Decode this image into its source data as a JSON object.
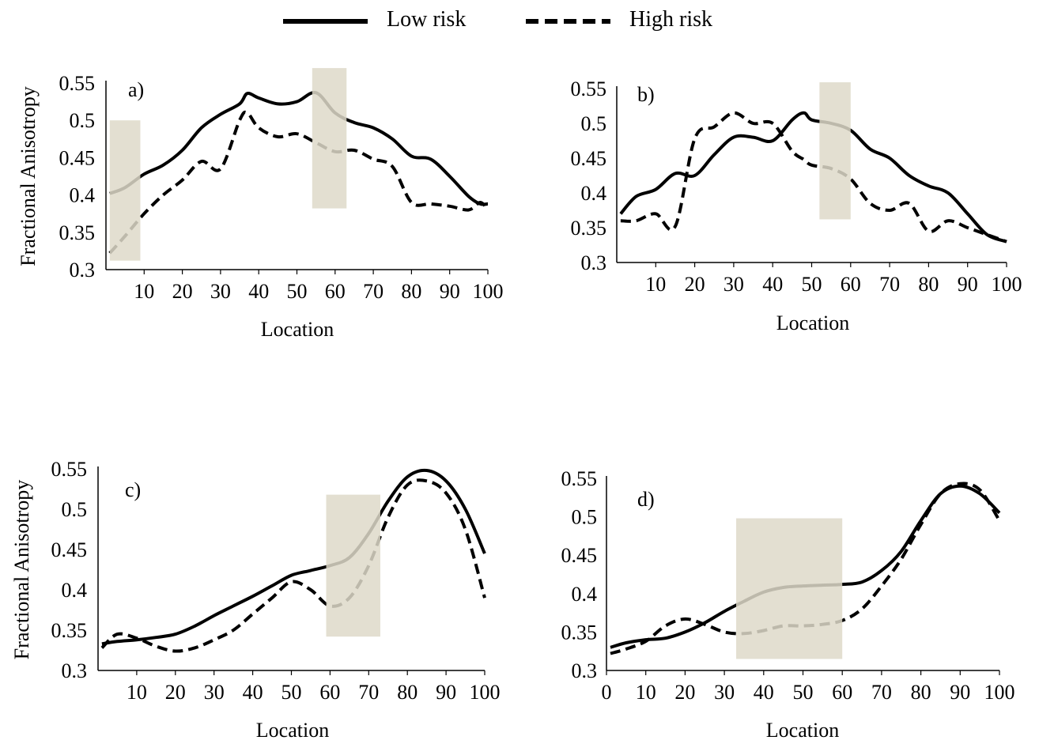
{
  "legend": {
    "position": "top-center",
    "items": [
      {
        "label": "Low risk",
        "style": "solid"
      },
      {
        "label": "High risk",
        "style": "dashed"
      }
    ]
  },
  "colors": {
    "line": "#000000",
    "highlight": "#ded9c9",
    "highlight_opacity": 0.85
  },
  "chart_data": [
    {
      "type": "line",
      "panel_label": "a)",
      "xlabel": "Location",
      "ylabel": "Fractional Anisotropy",
      "xlim": [
        0,
        100
      ],
      "ylim": [
        0.3,
        0.55
      ],
      "xticks": [
        10,
        20,
        30,
        40,
        50,
        60,
        70,
        80,
        90,
        100
      ],
      "yticks": [
        0.3,
        0.35,
        0.4,
        0.45,
        0.5,
        0.55
      ],
      "ytick_labels": [
        "0.3",
        "0.35",
        "0.4",
        "0.45",
        "0.5",
        "0.55"
      ],
      "highlights": [
        {
          "x": [
            1,
            9
          ],
          "y": [
            0.312,
            0.5
          ]
        },
        {
          "x": [
            54,
            63
          ],
          "y": [
            0.382,
            0.57
          ]
        }
      ],
      "x": [
        1,
        5,
        10,
        15,
        20,
        25,
        30,
        35,
        37,
        40,
        45,
        50,
        55,
        60,
        65,
        70,
        75,
        80,
        85,
        90,
        95,
        98,
        100
      ],
      "series": [
        {
          "name": "Low risk",
          "style": "solid",
          "values": [
            0.402,
            0.41,
            0.428,
            0.44,
            0.46,
            0.49,
            0.508,
            0.522,
            0.536,
            0.53,
            0.522,
            0.525,
            0.537,
            0.51,
            0.497,
            0.49,
            0.475,
            0.452,
            0.448,
            0.425,
            0.398,
            0.388,
            0.388
          ]
        },
        {
          "name": "High risk",
          "style": "dashed",
          "values": [
            0.322,
            0.345,
            0.375,
            0.4,
            0.42,
            0.445,
            0.435,
            0.5,
            0.51,
            0.49,
            0.478,
            0.482,
            0.47,
            0.458,
            0.46,
            0.448,
            0.438,
            0.39,
            0.388,
            0.385,
            0.38,
            0.39,
            0.38
          ]
        }
      ]
    },
    {
      "type": "line",
      "panel_label": "b)",
      "xlabel": "Location",
      "ylabel": "",
      "xlim": [
        0,
        100
      ],
      "ylim": [
        0.3,
        0.55
      ],
      "xticks": [
        10,
        20,
        30,
        40,
        50,
        60,
        70,
        80,
        90,
        100
      ],
      "yticks": [
        0.3,
        0.35,
        0.4,
        0.45,
        0.5,
        0.55
      ],
      "ytick_labels": [
        "0.3",
        "0.35",
        "0.4",
        "0.45",
        "0.5",
        "0.55"
      ],
      "highlights": [
        {
          "x": [
            52,
            60
          ],
          "y": [
            0.362,
            0.559
          ]
        }
      ],
      "x": [
        1,
        5,
        10,
        15,
        20,
        25,
        30,
        35,
        40,
        45,
        48,
        50,
        55,
        60,
        65,
        70,
        75,
        80,
        85,
        90,
        95,
        100
      ],
      "series": [
        {
          "name": "Low risk",
          "style": "solid",
          "values": [
            0.37,
            0.395,
            0.405,
            0.428,
            0.425,
            0.455,
            0.48,
            0.48,
            0.475,
            0.505,
            0.515,
            0.505,
            0.5,
            0.49,
            0.463,
            0.45,
            0.425,
            0.41,
            0.4,
            0.37,
            0.34,
            0.33
          ]
        },
        {
          "name": "High risk",
          "style": "dashed",
          "values": [
            0.36,
            0.36,
            0.37,
            0.352,
            0.478,
            0.495,
            0.515,
            0.5,
            0.5,
            0.46,
            0.448,
            0.44,
            0.435,
            0.42,
            0.385,
            0.375,
            0.385,
            0.345,
            0.36,
            0.35,
            0.34,
            0.33
          ]
        }
      ]
    },
    {
      "type": "line",
      "panel_label": "c)",
      "xlabel": "Location",
      "ylabel": "Fractional Anisotropy",
      "xlim": [
        0,
        100
      ],
      "ylim": [
        0.3,
        0.55
      ],
      "xticks": [
        10,
        20,
        30,
        40,
        50,
        60,
        70,
        80,
        90,
        100
      ],
      "yticks": [
        0.3,
        0.35,
        0.4,
        0.45,
        0.5,
        0.55
      ],
      "ytick_labels": [
        "0.3",
        "0.35",
        "0.4",
        "0.45",
        "0.5",
        "0.55"
      ],
      "highlights": [
        {
          "x": [
            59,
            73
          ],
          "y": [
            0.342,
            0.518
          ]
        }
      ],
      "x": [
        1,
        5,
        10,
        15,
        20,
        25,
        30,
        35,
        40,
        45,
        50,
        55,
        60,
        65,
        70,
        75,
        80,
        85,
        90,
        95,
        100
      ],
      "series": [
        {
          "name": "Low risk",
          "style": "solid",
          "values": [
            0.333,
            0.336,
            0.338,
            0.341,
            0.345,
            0.355,
            0.368,
            0.38,
            0.392,
            0.405,
            0.418,
            0.424,
            0.43,
            0.44,
            0.47,
            0.51,
            0.54,
            0.548,
            0.535,
            0.5,
            0.445
          ]
        },
        {
          "name": "High risk",
          "style": "dashed",
          "values": [
            0.328,
            0.345,
            0.34,
            0.33,
            0.324,
            0.328,
            0.338,
            0.35,
            0.37,
            0.39,
            0.41,
            0.4,
            0.38,
            0.39,
            0.43,
            0.49,
            0.53,
            0.535,
            0.52,
            0.475,
            0.39
          ]
        }
      ]
    },
    {
      "type": "line",
      "panel_label": "d)",
      "xlabel": "Location",
      "ylabel": "",
      "xlim": [
        0,
        100
      ],
      "ylim": [
        0.3,
        0.55
      ],
      "xticks": [
        0,
        10,
        20,
        30,
        40,
        50,
        60,
        70,
        80,
        90,
        100
      ],
      "yticks": [
        0.3,
        0.35,
        0.4,
        0.45,
        0.5,
        0.55
      ],
      "ytick_labels": [
        "0.3",
        "0.35",
        "0.4",
        "0.45",
        "0.5",
        "0.55"
      ],
      "highlights": [
        {
          "x": [
            33,
            60
          ],
          "y": [
            0.315,
            0.498
          ]
        }
      ],
      "x": [
        1,
        5,
        10,
        15,
        20,
        25,
        30,
        35,
        40,
        45,
        50,
        55,
        60,
        65,
        70,
        75,
        80,
        85,
        90,
        95,
        100
      ],
      "series": [
        {
          "name": "Low risk",
          "style": "solid",
          "values": [
            0.33,
            0.336,
            0.34,
            0.342,
            0.35,
            0.362,
            0.377,
            0.39,
            0.402,
            0.408,
            0.41,
            0.411,
            0.412,
            0.415,
            0.43,
            0.455,
            0.495,
            0.53,
            0.54,
            0.53,
            0.505
          ]
        },
        {
          "name": "High risk",
          "style": "dashed",
          "values": [
            0.322,
            0.328,
            0.338,
            0.358,
            0.367,
            0.36,
            0.35,
            0.348,
            0.352,
            0.358,
            0.358,
            0.36,
            0.365,
            0.38,
            0.41,
            0.445,
            0.49,
            0.53,
            0.543,
            0.535,
            0.495
          ]
        }
      ]
    }
  ]
}
